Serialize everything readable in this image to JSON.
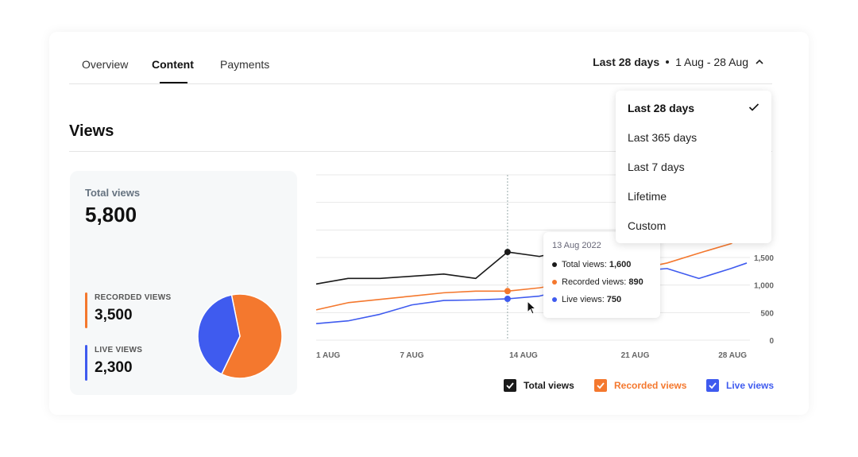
{
  "tabs": [
    {
      "label": "Overview",
      "active": false
    },
    {
      "label": "Content",
      "active": true
    },
    {
      "label": "Payments",
      "active": false
    }
  ],
  "date_range": {
    "selected": "Last 28 days",
    "range_text": "1 Aug - 28 Aug",
    "icon": "chevron-up-icon"
  },
  "section_title": "Views",
  "summary": {
    "total_label": "Total views",
    "total_value": "5,800",
    "recorded_label": "RECORDED VIEWS",
    "recorded_value": "3,500",
    "live_label": "LIVE VIEWS",
    "live_value": "2,300"
  },
  "dropdown": {
    "options": [
      "Last 28 days",
      "Last 365 days",
      "Last 7 days",
      "Lifetime",
      "Custom"
    ],
    "selected": "Last 28 days"
  },
  "tooltip": {
    "date": "13 Aug 2022",
    "rows": [
      {
        "label": "Total views:",
        "value": "1,600"
      },
      {
        "label": "Recorded views:",
        "value": "890"
      },
      {
        "label": "Live views:",
        "value": "750"
      }
    ]
  },
  "legend": {
    "total": "Total views",
    "recorded": "Recorded views",
    "live": "Live views"
  },
  "colors": {
    "total": "#1a1a1a",
    "recorded": "#f4782e",
    "live": "#3f5bef",
    "accent": "#111111"
  },
  "chart_data": [
    {
      "type": "pie",
      "categories": [
        "Recorded views",
        "Live views"
      ],
      "values": [
        3500,
        2300
      ]
    },
    {
      "type": "line",
      "x": [
        1,
        3,
        5,
        7,
        9,
        11,
        13,
        15,
        17,
        19,
        21,
        23,
        25,
        27,
        28
      ],
      "x_tick_labels": [
        "1 AUG",
        "7 AUG",
        "14 AUG",
        "21 AUG",
        "28 AUG"
      ],
      "x_tick_values": [
        1,
        7,
        14,
        21,
        28
      ],
      "y_tick_labels": [
        "0",
        "500",
        "1,000",
        "1,500"
      ],
      "y_tick_values": [
        0,
        500,
        1000,
        1500
      ],
      "ylim": [
        0,
        3000
      ],
      "series": [
        {
          "name": "Total views",
          "values": [
            1020,
            1120,
            1120,
            1160,
            1200,
            1120,
            1600,
            1520,
            1650,
            1750,
            1900,
            2000,
            2250,
            2450,
            2550
          ]
        },
        {
          "name": "Recorded views",
          "values": [
            550,
            680,
            740,
            800,
            860,
            890,
            890,
            950,
            1050,
            1150,
            1280,
            1400,
            1580,
            1750,
            1950
          ]
        },
        {
          "name": "Live views",
          "values": [
            300,
            350,
            470,
            640,
            720,
            730,
            750,
            800,
            940,
            1080,
            1250,
            1300,
            1120,
            1300,
            1400
          ]
        }
      ],
      "hover_x": 13,
      "grid": true
    }
  ]
}
